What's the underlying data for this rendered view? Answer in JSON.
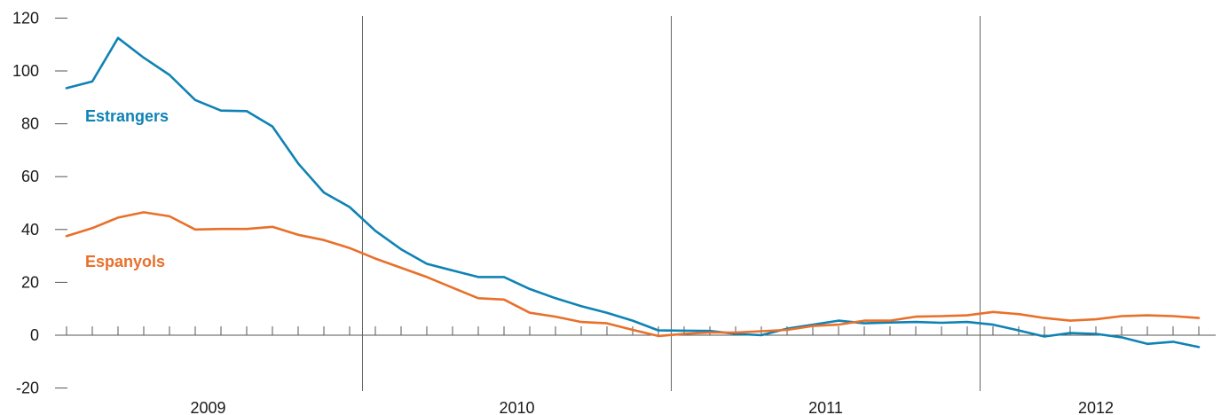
{
  "chart_data": {
    "type": "line",
    "title": "",
    "xlabel": "",
    "ylabel": "",
    "ylim": [
      -20,
      120
    ],
    "yticks": [
      -20,
      0,
      20,
      40,
      60,
      80,
      100,
      120
    ],
    "ytick_labels": [
      "-20",
      "0",
      "20",
      "40",
      "60",
      "80",
      "100",
      "120"
    ],
    "x_start_month": "2009-01",
    "year_labels": [
      "2009",
      "2010",
      "2011",
      "2012"
    ],
    "grid": false,
    "legend": "inline labels",
    "series": [
      {
        "name": "Estrangers",
        "color": "#0f82b4",
        "values": [
          93.5,
          96,
          112.5,
          105,
          98.5,
          89,
          85,
          84.8,
          79,
          65,
          54,
          48.5,
          39.5,
          32.5,
          27,
          24.5,
          22,
          22,
          17.5,
          14,
          11,
          8.5,
          5.5,
          1.8,
          1.7,
          1.6,
          0.5,
          0,
          2.5,
          4,
          5.5,
          4.5,
          4.8,
          5,
          4.7,
          5,
          4,
          1.8,
          -0.5,
          0.8,
          0.5,
          -0.8,
          -3.3,
          -2.5,
          -4.5
        ]
      },
      {
        "name": "Espanyols",
        "color": "#e8702a",
        "values": [
          37.5,
          40.5,
          44.5,
          46.5,
          45,
          40,
          40.2,
          40.2,
          41,
          38,
          36,
          33,
          29,
          25.5,
          22,
          18,
          14,
          13.5,
          8.5,
          7,
          5,
          4.5,
          2,
          -0.3,
          0.5,
          1,
          1,
          1.5,
          2,
          3.5,
          4,
          5.5,
          5.5,
          7,
          7.2,
          7.5,
          8.8,
          8,
          6.5,
          5.5,
          6,
          7.2,
          7.5,
          7.2,
          6.5
        ]
      }
    ]
  }
}
